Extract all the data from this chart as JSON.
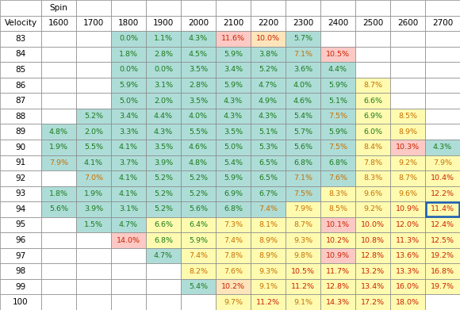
{
  "spin_cols": [
    1600,
    1700,
    1800,
    1900,
    2000,
    2100,
    2200,
    2300,
    2400,
    2500,
    2600,
    2700
  ],
  "velocity_rows": [
    83,
    84,
    85,
    86,
    87,
    88,
    89,
    90,
    91,
    92,
    93,
    94,
    95,
    96,
    97,
    98,
    99,
    100
  ],
  "table_data": [
    [
      "",
      "",
      "0.0%",
      "1.1%",
      "4.3%",
      "11.6%",
      "10.0%",
      "5.7%",
      "",
      "",
      "",
      ""
    ],
    [
      "",
      "",
      "1.8%",
      "2.8%",
      "4.5%",
      "5.9%",
      "3.8%",
      "7.1%",
      "10.5%",
      "",
      "",
      ""
    ],
    [
      "",
      "",
      "0.0%",
      "0.0%",
      "3.5%",
      "3.4%",
      "5.2%",
      "3.6%",
      "4.4%",
      "",
      "",
      ""
    ],
    [
      "",
      "",
      "5.9%",
      "3.1%",
      "2.8%",
      "5.9%",
      "4.7%",
      "4.0%",
      "5.9%",
      "8.7%",
      "",
      ""
    ],
    [
      "",
      "",
      "5.0%",
      "2.0%",
      "3.5%",
      "4.3%",
      "4.9%",
      "4.6%",
      "5.1%",
      "6.6%",
      "",
      ""
    ],
    [
      "",
      "5.2%",
      "3.4%",
      "4.4%",
      "4.0%",
      "4.3%",
      "4.3%",
      "5.4%",
      "7.5%",
      "6.9%",
      "8.5%",
      ""
    ],
    [
      "4.8%",
      "2.0%",
      "3.3%",
      "4.3%",
      "5.5%",
      "3.5%",
      "5.1%",
      "5.7%",
      "5.9%",
      "6.0%",
      "8.9%",
      ""
    ],
    [
      "1.9%",
      "5.5%",
      "4.1%",
      "3.5%",
      "4.6%",
      "5.0%",
      "5.3%",
      "5.6%",
      "7.5%",
      "8.4%",
      "10.3%",
      "4.3%"
    ],
    [
      "7.9%",
      "4.1%",
      "3.7%",
      "3.9%",
      "4.8%",
      "5.4%",
      "6.5%",
      "6.8%",
      "6.8%",
      "7.8%",
      "9.2%",
      "7.9%"
    ],
    [
      "",
      "7.0%",
      "4.1%",
      "5.2%",
      "5.2%",
      "5.9%",
      "6.5%",
      "7.1%",
      "7.6%",
      "8.3%",
      "8.7%",
      "10.4%"
    ],
    [
      "1.8%",
      "1.9%",
      "4.1%",
      "5.2%",
      "5.2%",
      "6.9%",
      "6.7%",
      "7.5%",
      "8.3%",
      "9.6%",
      "9.6%",
      "12.2%"
    ],
    [
      "5.6%",
      "3.9%",
      "3.1%",
      "5.2%",
      "5.6%",
      "6.8%",
      "7.4%",
      "7.9%",
      "8.5%",
      "9.2%",
      "10.9%",
      "11.4%"
    ],
    [
      "",
      "1.5%",
      "4.7%",
      "6.6%",
      "6.4%",
      "7.3%",
      "8.1%",
      "8.7%",
      "10.1%",
      "10.0%",
      "12.0%",
      "12.4%"
    ],
    [
      "",
      "",
      "14.0%",
      "6.8%",
      "5.9%",
      "7.4%",
      "8.9%",
      "9.3%",
      "10.2%",
      "10.8%",
      "11.3%",
      "12.5%"
    ],
    [
      "",
      "",
      "",
      "4.7%",
      "7.4%",
      "7.8%",
      "8.9%",
      "9.8%",
      "10.9%",
      "12.8%",
      "13.6%",
      "19.2%"
    ],
    [
      "",
      "",
      "",
      "",
      "8.2%",
      "7.6%",
      "9.3%",
      "10.5%",
      "11.7%",
      "13.2%",
      "13.3%",
      "16.8%"
    ],
    [
      "",
      "",
      "",
      "",
      "5.4%",
      "10.2%",
      "9.1%",
      "11.2%",
      "12.8%",
      "13.4%",
      "16.0%",
      "19.7%"
    ],
    [
      "",
      "",
      "",
      "",
      "",
      "9.7%",
      "11.2%",
      "9.1%",
      "14.3%",
      "17.2%",
      "18.0%",
      ""
    ]
  ],
  "cell_colors": [
    [
      "w",
      "w",
      "teal",
      "teal",
      "teal",
      "pink",
      "orange",
      "teal",
      "w",
      "w",
      "w",
      "w"
    ],
    [
      "w",
      "w",
      "teal",
      "teal",
      "teal",
      "teal",
      "teal",
      "teal",
      "pink",
      "w",
      "w",
      "w"
    ],
    [
      "w",
      "w",
      "teal",
      "teal",
      "teal",
      "teal",
      "teal",
      "teal",
      "teal",
      "w",
      "w",
      "w"
    ],
    [
      "w",
      "w",
      "teal",
      "teal",
      "teal",
      "teal",
      "teal",
      "teal",
      "teal",
      "yellow",
      "w",
      "w"
    ],
    [
      "w",
      "w",
      "teal",
      "teal",
      "teal",
      "teal",
      "teal",
      "teal",
      "teal",
      "yellow",
      "w",
      "w"
    ],
    [
      "w",
      "teal",
      "teal",
      "teal",
      "teal",
      "teal",
      "teal",
      "teal",
      "teal",
      "yellow",
      "yellow",
      "w"
    ],
    [
      "teal",
      "teal",
      "teal",
      "teal",
      "teal",
      "teal",
      "teal",
      "teal",
      "teal",
      "yellow",
      "yellow",
      "w"
    ],
    [
      "teal",
      "teal",
      "teal",
      "teal",
      "teal",
      "teal",
      "teal",
      "teal",
      "teal",
      "yellow",
      "pink",
      "teal"
    ],
    [
      "teal",
      "teal",
      "teal",
      "teal",
      "teal",
      "teal",
      "teal",
      "teal",
      "teal",
      "yellow",
      "yellow",
      "yellow"
    ],
    [
      "w",
      "teal",
      "teal",
      "teal",
      "teal",
      "teal",
      "teal",
      "teal",
      "teal",
      "yellow",
      "yellow",
      "yellow"
    ],
    [
      "teal",
      "teal",
      "teal",
      "teal",
      "teal",
      "teal",
      "teal",
      "teal",
      "yellow",
      "yellow",
      "yellow",
      "yellow"
    ],
    [
      "teal",
      "teal",
      "teal",
      "teal",
      "teal",
      "teal",
      "teal",
      "yellow",
      "yellow",
      "yellow",
      "yellow",
      "blue_border"
    ],
    [
      "w",
      "teal",
      "teal",
      "yellow",
      "yellow",
      "yellow",
      "yellow",
      "yellow",
      "pink",
      "yellow",
      "yellow",
      "yellow"
    ],
    [
      "w",
      "w",
      "pink",
      "yellow",
      "yellow",
      "yellow",
      "yellow",
      "yellow",
      "yellow",
      "yellow",
      "yellow",
      "yellow"
    ],
    [
      "w",
      "w",
      "w",
      "teal",
      "yellow",
      "yellow",
      "yellow",
      "yellow",
      "pink",
      "yellow",
      "yellow",
      "yellow"
    ],
    [
      "w",
      "w",
      "w",
      "w",
      "yellow",
      "yellow",
      "yellow",
      "yellow",
      "yellow",
      "yellow",
      "yellow",
      "yellow"
    ],
    [
      "w",
      "w",
      "w",
      "w",
      "teal",
      "orange",
      "yellow",
      "yellow",
      "yellow",
      "yellow",
      "yellow",
      "yellow"
    ],
    [
      "w",
      "w",
      "w",
      "w",
      "w",
      "yellow",
      "yellow",
      "yellow",
      "yellow",
      "yellow",
      "yellow",
      "w"
    ]
  ],
  "teal_color": "#aeddd8",
  "yellow_color": "#fefbb0",
  "pink_color": "#fcc9c5",
  "orange_color": "#fde4bb",
  "white_color": "#ffffff",
  "border_color": "#888888",
  "text_green": "#1a7a1a",
  "text_orange": "#c87000",
  "text_red": "#cc2200",
  "text_black": "#000000",
  "green_threshold": 7.0,
  "red_threshold": 10.0
}
